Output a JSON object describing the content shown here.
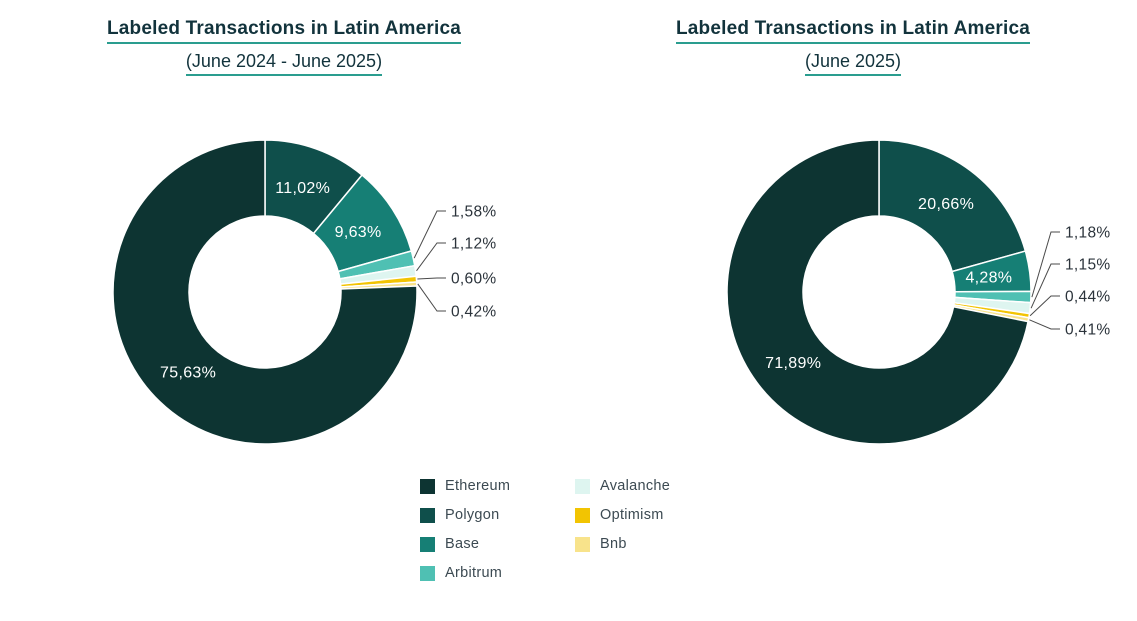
{
  "page": {
    "background": "#ffffff"
  },
  "colors": {
    "ethereum": "#0d3432",
    "polygon": "#0f4f4b",
    "base": "#167f75",
    "arbitrum": "#4fc0b3",
    "avalanche": "#def5f0",
    "optimism": "#f2c402",
    "bnb": "#f8e38b",
    "title_text": "#12333c",
    "title_underline": "#2a9d8f",
    "callout_text": "#2b333b",
    "leader_line": "#4a4a4a",
    "legend_text": "#3c4a52"
  },
  "chart_data": [
    {
      "type": "pie",
      "variant": "donut",
      "title": "Labeled Transactions in Latin America",
      "subtitle": "(June 2024 - June 2025)",
      "legend_position": "bottom-center",
      "slices": [
        {
          "name": "Ethereum",
          "value": 75.63,
          "label": "75,63%",
          "label_pos": "inside"
        },
        {
          "name": "Polygon",
          "value": 11.02,
          "label": "11,02%",
          "label_pos": "inside"
        },
        {
          "name": "Base",
          "value": 9.63,
          "label": "9,63%",
          "label_pos": "inside"
        },
        {
          "name": "Arbitrum",
          "value": 1.58,
          "label": "1,58%",
          "label_pos": "callout"
        },
        {
          "name": "Avalanche",
          "value": 1.12,
          "label": "1,12%",
          "label_pos": "callout"
        },
        {
          "name": "Optimism",
          "value": 0.6,
          "label": "0,60%",
          "label_pos": "callout"
        },
        {
          "name": "Bnb",
          "value": 0.42,
          "label": "0,42%",
          "label_pos": "callout"
        }
      ],
      "draw_order": [
        "Polygon",
        "Base",
        "Arbitrum",
        "Avalanche",
        "Optimism",
        "Bnb",
        "Ethereum"
      ],
      "callout_offsets": [
        -81,
        -49,
        -14,
        19
      ]
    },
    {
      "type": "pie",
      "variant": "donut",
      "title": "Labeled Transactions in Latin America",
      "subtitle": "(June 2025)",
      "legend_position": "bottom-center",
      "slices": [
        {
          "name": "Ethereum",
          "value": 71.89,
          "label": "71,89%",
          "label_pos": "inside"
        },
        {
          "name": "Polygon",
          "value": 20.66,
          "label": "20,66%",
          "label_pos": "inside"
        },
        {
          "name": "Base",
          "value": 4.28,
          "label": "4,28%",
          "label_pos": "inside"
        },
        {
          "name": "Arbitrum",
          "value": 1.18,
          "label": "1,18%",
          "label_pos": "callout"
        },
        {
          "name": "Avalanche",
          "value": 1.15,
          "label": "1,15%",
          "label_pos": "callout"
        },
        {
          "name": "Optimism",
          "value": 0.44,
          "label": "0,44%",
          "label_pos": "callout"
        },
        {
          "name": "Bnb",
          "value": 0.41,
          "label": "0,41%",
          "label_pos": "callout"
        }
      ],
      "draw_order": [
        "Polygon",
        "Base",
        "Arbitrum",
        "Avalanche",
        "Optimism",
        "Bnb",
        "Ethereum"
      ],
      "callout_offsets": [
        -60,
        -28,
        4,
        37
      ]
    }
  ],
  "legend": {
    "columns": [
      [
        "Ethereum",
        "Polygon",
        "Base",
        "Arbitrum"
      ],
      [
        "Avalanche",
        "Optimism",
        "Bnb"
      ]
    ]
  }
}
